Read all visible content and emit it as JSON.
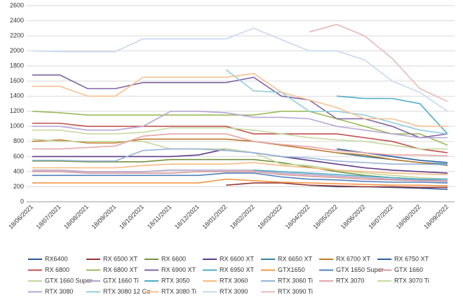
{
  "chart_data": {
    "type": "line",
    "categories": [
      "18/06/2021",
      "18/07/2021",
      "18/08/2021",
      "18/09/2021",
      "18/10/2021",
      "18/11/2021",
      "18/12/2021",
      "18/01/2022",
      "18/02/2022",
      "18/03/2022",
      "18/04/2022",
      "18/05/2022",
      "18/06/2022",
      "18/07/2022",
      "18/08/2022",
      "18/09/2022"
    ],
    "ylim": [
      0,
      2600
    ],
    "yticks": [
      0,
      200,
      400,
      600,
      800,
      1000,
      1200,
      1400,
      1600,
      1800,
      2000,
      2200,
      2400,
      2600
    ],
    "grid": true,
    "series": [
      {
        "name": "RX6400",
        "color": "#2f5597",
        "values": [
          null,
          null,
          null,
          null,
          null,
          null,
          null,
          null,
          null,
          null,
          220,
          200,
          200,
          190,
          180,
          165
        ]
      },
      {
        "name": "RX  6500 XT",
        "color": "#943634",
        "values": [
          null,
          null,
          null,
          null,
          null,
          null,
          null,
          220,
          250,
          250,
          220,
          210,
          200,
          200,
          190,
          190
        ]
      },
      {
        "name": "RX 6600",
        "color": "#76923c",
        "values": [
          540,
          540,
          530,
          530,
          530,
          560,
          560,
          560,
          560,
          520,
          460,
          400,
          350,
          320,
          300,
          300
        ]
      },
      {
        "name": "RX 6600 XT",
        "color": "#5f3a87",
        "values": [
          600,
          600,
          600,
          600,
          600,
          600,
          620,
          700,
          650,
          600,
          550,
          500,
          450,
          420,
          400,
          380
        ]
      },
      {
        "name": "RX 6650 XT",
        "color": "#31859c",
        "values": [
          null,
          null,
          null,
          null,
          null,
          null,
          null,
          null,
          null,
          null,
          null,
          650,
          600,
          560,
          520,
          500
        ]
      },
      {
        "name": "RX 6700 XT",
        "color": "#c0782b",
        "values": [
          800,
          820,
          780,
          780,
          830,
          830,
          830,
          830,
          800,
          750,
          700,
          650,
          620,
          560,
          520,
          480
        ]
      },
      {
        "name": "RX 6750 XT",
        "color": "#2c5f9e",
        "values": [
          null,
          null,
          null,
          null,
          null,
          null,
          null,
          null,
          null,
          null,
          null,
          700,
          650,
          600,
          550,
          520
        ]
      },
      {
        "name": "RX 6800",
        "color": "#c0504d",
        "values": [
          1040,
          1040,
          1000,
          1000,
          1000,
          1000,
          1000,
          1000,
          900,
          900,
          900,
          900,
          850,
          800,
          700,
          650
        ]
      },
      {
        "name": "RX 6800 XT",
        "color": "#9bbb59",
        "values": [
          1200,
          1180,
          1150,
          1150,
          1150,
          1150,
          1150,
          1150,
          1150,
          1200,
          1200,
          1100,
          1000,
          900,
          900,
          750
        ]
      },
      {
        "name": "RX 6900 XT",
        "color": "#8064a2",
        "values": [
          1680,
          1680,
          1500,
          1500,
          1580,
          1580,
          1580,
          1580,
          1650,
          1400,
          1350,
          1100,
          1100,
          1000,
          850,
          900
        ]
      },
      {
        "name": "RX 6950 XT",
        "color": "#4bacc6",
        "values": [
          null,
          null,
          null,
          null,
          null,
          null,
          null,
          null,
          null,
          null,
          null,
          1400,
          1370,
          1370,
          1300,
          900
        ]
      },
      {
        "name": "GTX1650",
        "color": "#f79646",
        "values": [
          250,
          250,
          250,
          250,
          250,
          250,
          250,
          300,
          280,
          260,
          250,
          240,
          230,
          220,
          220,
          210
        ]
      },
      {
        "name": "GTX 1650 Super",
        "color": "#4f81bd",
        "values": [
          350,
          350,
          350,
          350,
          350,
          350,
          350,
          380,
          380,
          330,
          300,
          290,
          270,
          260,
          260,
          250
        ]
      },
      {
        "name": "GTX 1660",
        "color": "#d99694",
        "values": [
          400,
          400,
          380,
          380,
          380,
          380,
          400,
          400,
          400,
          360,
          340,
          320,
          300,
          290,
          280,
          270
        ]
      },
      {
        "name": "GTX 1660 Super",
        "color": "#c3d69b",
        "values": [
          830,
          800,
          800,
          800,
          800,
          700,
          700,
          700,
          650,
          500,
          480,
          420,
          380,
          350,
          320,
          300
        ]
      },
      {
        "name": "GTX 1660 Ti",
        "color": "#b3a2c7",
        "values": [
          420,
          420,
          400,
          400,
          400,
          420,
          420,
          420,
          420,
          380,
          360,
          340,
          320,
          300,
          290,
          280
        ]
      },
      {
        "name": "RTX 3050",
        "color": "#4bacc6",
        "values": [
          null,
          null,
          null,
          null,
          null,
          null,
          null,
          null,
          420,
          400,
          380,
          360,
          340,
          320,
          300,
          300
        ]
      },
      {
        "name": "RTX 3060",
        "color": "#f9b97f",
        "values": [
          450,
          450,
          450,
          450,
          480,
          500,
          500,
          500,
          520,
          480,
          450,
          420,
          400,
          380,
          370,
          360
        ]
      },
      {
        "name": "RTX 3060 Ti",
        "color": "#95b3d7",
        "values": [
          550,
          550,
          540,
          540,
          680,
          700,
          700,
          680,
          650,
          600,
          580,
          540,
          520,
          500,
          500,
          490
        ]
      },
      {
        "name": "RTX 3070",
        "color": "#e6a5a5",
        "values": [
          700,
          700,
          720,
          740,
          870,
          900,
          900,
          900,
          800,
          760,
          730,
          680,
          650,
          620,
          620,
          610
        ]
      },
      {
        "name": "RTX 3070 Ti",
        "color": "#c5dba1",
        "values": [
          950,
          950,
          900,
          900,
          920,
          980,
          980,
          980,
          950,
          900,
          850,
          820,
          800,
          750,
          700,
          700
        ]
      },
      {
        "name": "RTX 3080",
        "color": "#b7a6d4",
        "values": [
          1000,
          1000,
          950,
          950,
          1000,
          1200,
          1200,
          1180,
          1120,
          1120,
          1100,
          1000,
          950,
          900,
          850,
          850
        ]
      },
      {
        "name": "RTX 3080 12 Go",
        "color": "#92cddc",
        "values": [
          null,
          null,
          null,
          null,
          null,
          null,
          null,
          1750,
          1470,
          1450,
          1200,
          1200,
          1150,
          1050,
          950,
          900
        ]
      },
      {
        "name": "RTX 3080 Ti",
        "color": "#fac090",
        "values": [
          1530,
          1530,
          1400,
          1400,
          1650,
          1650,
          1650,
          1650,
          1700,
          1450,
          1350,
          1250,
          1100,
          1100,
          1000,
          1000
        ]
      },
      {
        "name": "RTX 3090",
        "color": "#c6d9f1",
        "values": [
          2000,
          1990,
          1990,
          1990,
          2160,
          2160,
          2160,
          2160,
          2300,
          2150,
          2000,
          2000,
          1880,
          1600,
          1450,
          1200
        ]
      },
      {
        "name": "RTX 3090 Ti",
        "color": "#e6b9b8",
        "values": [
          null,
          null,
          null,
          null,
          null,
          null,
          null,
          null,
          null,
          null,
          2250,
          2350,
          2200,
          1900,
          1500,
          1330
        ]
      }
    ]
  }
}
